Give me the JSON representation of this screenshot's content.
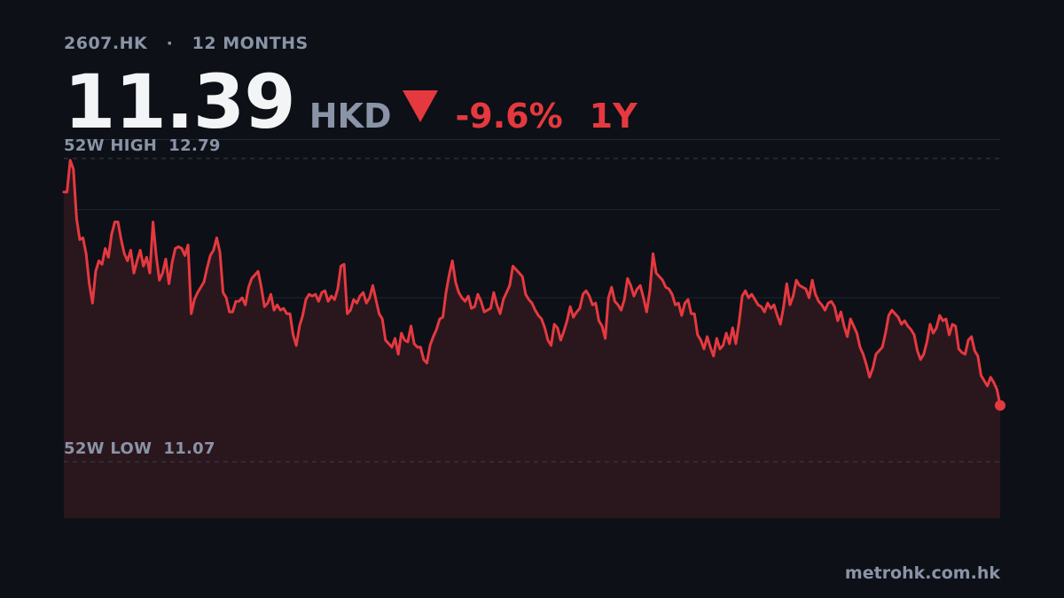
{
  "header": {
    "ticker": "2607.HK",
    "separator": "·",
    "range_label": "12 MONTHS",
    "price": "11.39",
    "currency": "HKD",
    "change": "-9.6%",
    "period": "1Y"
  },
  "labels": {
    "high": "52W HIGH  12.79",
    "low": "52W LOW  11.07"
  },
  "footer": {
    "source": "metrohk.com.hk"
  },
  "colors": {
    "background": "#0d1017",
    "line": "#e5393f",
    "fill": "#2a171d",
    "muted_text": "#8a94a6",
    "price_text": "#f3f4f6"
  },
  "chart_data": {
    "type": "area",
    "series": [
      {
        "values": [
          12.6,
          12.6,
          12.78,
          12.73,
          12.45,
          12.33,
          12.34,
          12.25,
          12.08,
          11.97,
          12.15,
          12.21,
          12.19,
          12.28,
          12.23,
          12.36,
          12.43,
          12.43,
          12.33,
          12.25,
          12.21,
          12.27,
          12.14,
          12.21,
          12.27,
          12.18,
          12.23,
          12.14,
          12.43,
          12.24,
          12.1,
          12.14,
          12.22,
          12.08,
          12.2,
          12.28,
          12.29,
          12.28,
          12.24,
          12.3,
          11.91,
          11.99,
          12.03,
          12.06,
          12.09,
          12.17,
          12.24,
          12.27,
          12.34,
          12.26,
          12.03,
          12.0,
          11.92,
          11.92,
          11.98,
          11.98,
          12.0,
          11.96,
          12.06,
          12.11,
          12.13,
          12.15,
          12.06,
          11.95,
          11.97,
          12.02,
          11.93,
          11.96,
          11.93,
          11.94,
          11.91,
          11.91,
          11.79,
          11.73,
          11.84,
          11.9,
          11.99,
          12.02,
          12.01,
          12.02,
          11.98,
          12.03,
          12.04,
          11.98,
          12.01,
          11.99,
          12.05,
          12.18,
          12.19,
          11.91,
          11.93,
          11.99,
          11.97,
          12.01,
          12.03,
          11.97,
          12.0,
          12.07,
          11.99,
          11.91,
          11.88,
          11.76,
          11.74,
          11.72,
          11.77,
          11.68,
          11.8,
          11.76,
          11.75,
          11.84,
          11.74,
          11.72,
          11.72,
          11.65,
          11.63,
          11.73,
          11.78,
          11.82,
          11.88,
          11.89,
          12.03,
          12.13,
          12.21,
          12.09,
          12.03,
          12.0,
          11.98,
          12.01,
          11.94,
          11.95,
          12.02,
          11.98,
          11.92,
          11.93,
          11.94,
          12.03,
          11.96,
          11.91,
          11.99,
          12.03,
          12.07,
          12.18,
          12.16,
          12.14,
          12.12,
          12.02,
          11.99,
          11.97,
          11.93,
          11.9,
          11.88,
          11.83,
          11.76,
          11.73,
          11.85,
          11.83,
          11.76,
          11.81,
          11.87,
          11.95,
          11.89,
          11.92,
          11.94,
          12.02,
          12.04,
          12.01,
          11.96,
          11.97,
          11.87,
          11.84,
          11.77,
          12.0,
          12.06,
          11.98,
          11.96,
          11.93,
          11.99,
          12.11,
          12.07,
          12.01,
          12.05,
          12.07,
          12.0,
          11.92,
          12.04,
          12.25,
          12.14,
          12.12,
          12.1,
          12.06,
          12.05,
          12.02,
          11.96,
          11.97,
          11.9,
          11.97,
          11.99,
          11.91,
          11.91,
          11.79,
          11.76,
          11.71,
          11.78,
          11.72,
          11.67,
          11.77,
          11.71,
          11.73,
          11.8,
          11.74,
          11.83,
          11.74,
          11.86,
          12.01,
          12.04,
          12.0,
          12.02,
          11.99,
          11.96,
          11.95,
          11.92,
          11.97,
          11.94,
          11.96,
          11.9,
          11.85,
          11.95,
          12.08,
          11.96,
          12.01,
          12.1,
          12.07,
          12.06,
          12.05,
          12.0,
          12.1,
          12.02,
          11.98,
          11.96,
          11.93,
          11.97,
          11.98,
          11.95,
          11.87,
          11.92,
          11.84,
          11.78,
          11.88,
          11.84,
          11.8,
          11.72,
          11.68,
          11.62,
          11.55,
          11.6,
          11.68,
          11.7,
          11.72,
          11.8,
          11.9,
          11.93,
          11.91,
          11.89,
          11.85,
          11.87,
          11.84,
          11.82,
          11.79,
          11.7,
          11.65,
          11.68,
          11.75,
          11.85,
          11.8,
          11.83,
          11.9,
          11.87,
          11.88,
          11.79,
          11.85,
          11.84,
          11.71,
          11.69,
          11.68,
          11.76,
          11.78,
          11.7,
          11.67,
          11.56,
          11.53,
          11.5,
          11.55,
          11.52,
          11.48,
          11.39
        ]
      }
    ],
    "title": "",
    "xlabel": "",
    "ylabel": "",
    "ylim": [
      10.75,
      12.9
    ],
    "high": 12.79,
    "low": 11.07,
    "last": 11.39,
    "grid": true,
    "legend": "none"
  }
}
